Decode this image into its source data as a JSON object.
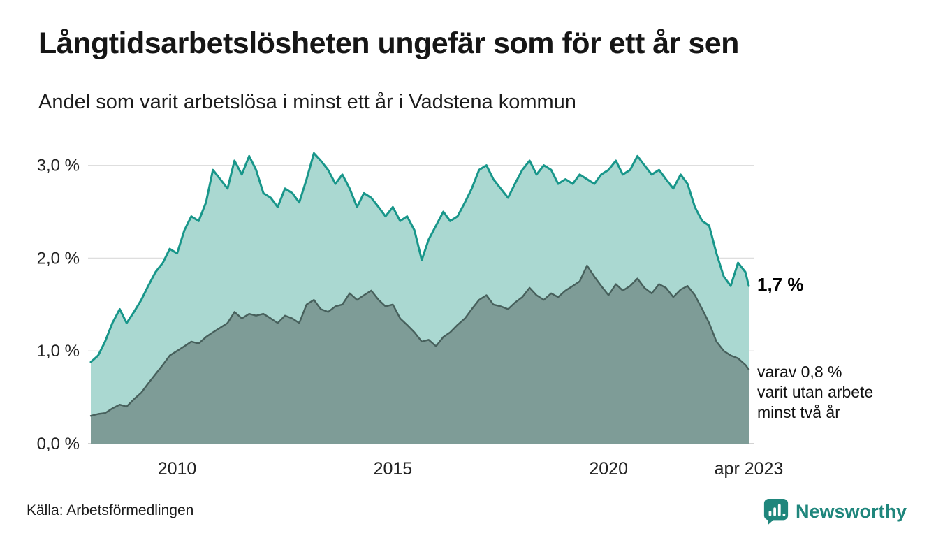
{
  "header": {
    "title": "Långtidsarbetslösheten ungefär som för ett år sen",
    "subtitle": "Andel som varit arbetslösa i minst ett år i Vadstena kommun"
  },
  "annotations": {
    "latest_total": "1,7 %",
    "two_years_line1": "varav 0,8 %",
    "two_years_line2": "varit utan arbete",
    "two_years_line3": "minst två år"
  },
  "footer": {
    "source": "Källa: Arbetsförmedlingen",
    "brand": "Newsworthy"
  },
  "colors": {
    "total_fill": "#aad8d1",
    "total_stroke": "#18968a",
    "two_years_fill": "#7e9c97",
    "two_years_stroke": "#47605c",
    "grid": "#dedede",
    "baseline": "#c4c4c4",
    "brand_teal": "#1f867c"
  },
  "chart_data": {
    "type": "area",
    "title": "Långtidsarbetslösheten ungefär som för ett år sen",
    "subtitle": "Andel som varit arbetslösa i minst ett år i Vadstena kommun",
    "xlabel": "",
    "ylabel": "",
    "ylim": [
      0,
      3.2
    ],
    "grid": "horizontal",
    "legend_position": "right-annotations",
    "yticks": [
      {
        "value": 0,
        "label": "0,0 %"
      },
      {
        "value": 1,
        "label": "1,0 %"
      },
      {
        "value": 2,
        "label": "2,0 %"
      },
      {
        "value": 3,
        "label": "3,0 %"
      }
    ],
    "xticks": [
      {
        "value": 2010,
        "label": "2010"
      },
      {
        "value": 2015,
        "label": "2015"
      },
      {
        "value": 2020,
        "label": "2020"
      },
      {
        "value": 2023.25,
        "label": "apr 2023"
      }
    ],
    "x": [
      2008.0,
      2008.17,
      2008.33,
      2008.5,
      2008.67,
      2008.83,
      2009.0,
      2009.17,
      2009.33,
      2009.5,
      2009.67,
      2009.83,
      2010.0,
      2010.17,
      2010.33,
      2010.5,
      2010.67,
      2010.83,
      2011.0,
      2011.17,
      2011.33,
      2011.5,
      2011.67,
      2011.83,
      2012.0,
      2012.17,
      2012.33,
      2012.5,
      2012.67,
      2012.83,
      2013.0,
      2013.17,
      2013.33,
      2013.5,
      2013.67,
      2013.83,
      2014.0,
      2014.17,
      2014.33,
      2014.5,
      2014.67,
      2014.83,
      2015.0,
      2015.17,
      2015.33,
      2015.5,
      2015.67,
      2015.83,
      2016.0,
      2016.17,
      2016.33,
      2016.5,
      2016.67,
      2016.83,
      2017.0,
      2017.17,
      2017.33,
      2017.5,
      2017.67,
      2017.83,
      2018.0,
      2018.17,
      2018.33,
      2018.5,
      2018.67,
      2018.83,
      2019.0,
      2019.17,
      2019.33,
      2019.5,
      2019.67,
      2019.83,
      2020.0,
      2020.17,
      2020.33,
      2020.5,
      2020.67,
      2020.83,
      2021.0,
      2021.17,
      2021.33,
      2021.5,
      2021.67,
      2021.83,
      2022.0,
      2022.17,
      2022.33,
      2022.5,
      2022.67,
      2022.83,
      2023.0,
      2023.17,
      2023.25
    ],
    "series": [
      {
        "name": "Arbetslösa minst ett år",
        "latest_value": 1.7,
        "fill": "#aad8d1",
        "stroke": "#18968a",
        "values": [
          0.88,
          0.95,
          1.1,
          1.3,
          1.45,
          1.3,
          1.42,
          1.55,
          1.7,
          1.85,
          1.95,
          2.1,
          2.05,
          2.3,
          2.45,
          2.4,
          2.6,
          2.95,
          2.85,
          2.75,
          3.05,
          2.9,
          3.1,
          2.95,
          2.7,
          2.65,
          2.55,
          2.75,
          2.7,
          2.6,
          2.85,
          3.13,
          3.05,
          2.95,
          2.8,
          2.9,
          2.75,
          2.55,
          2.7,
          2.65,
          2.55,
          2.45,
          2.55,
          2.4,
          2.45,
          2.3,
          1.98,
          2.2,
          2.35,
          2.5,
          2.4,
          2.45,
          2.6,
          2.75,
          2.95,
          3.0,
          2.85,
          2.75,
          2.65,
          2.8,
          2.95,
          3.05,
          2.9,
          3.0,
          2.95,
          2.8,
          2.85,
          2.8,
          2.9,
          2.85,
          2.8,
          2.9,
          2.95,
          3.05,
          2.9,
          2.95,
          3.1,
          3.0,
          2.9,
          2.95,
          2.85,
          2.75,
          2.9,
          2.8,
          2.55,
          2.4,
          2.35,
          2.05,
          1.8,
          1.7,
          1.95,
          1.85,
          1.7
        ]
      },
      {
        "name": "varav utan arbete minst två år",
        "latest_value": 0.8,
        "fill": "#7e9c97",
        "stroke": "#47605c",
        "values": [
          0.3,
          0.32,
          0.33,
          0.38,
          0.42,
          0.4,
          0.48,
          0.55,
          0.65,
          0.75,
          0.85,
          0.95,
          1.0,
          1.05,
          1.1,
          1.08,
          1.15,
          1.2,
          1.25,
          1.3,
          1.42,
          1.35,
          1.4,
          1.38,
          1.4,
          1.35,
          1.3,
          1.38,
          1.35,
          1.3,
          1.5,
          1.55,
          1.45,
          1.42,
          1.48,
          1.5,
          1.62,
          1.55,
          1.6,
          1.65,
          1.55,
          1.48,
          1.5,
          1.35,
          1.28,
          1.2,
          1.1,
          1.12,
          1.05,
          1.15,
          1.2,
          1.28,
          1.35,
          1.45,
          1.55,
          1.6,
          1.5,
          1.48,
          1.45,
          1.52,
          1.58,
          1.68,
          1.6,
          1.55,
          1.62,
          1.58,
          1.65,
          1.7,
          1.75,
          1.92,
          1.8,
          1.7,
          1.6,
          1.72,
          1.65,
          1.7,
          1.78,
          1.68,
          1.62,
          1.72,
          1.68,
          1.58,
          1.66,
          1.7,
          1.6,
          1.45,
          1.3,
          1.1,
          1.0,
          0.95,
          0.92,
          0.85,
          0.8
        ]
      }
    ]
  }
}
